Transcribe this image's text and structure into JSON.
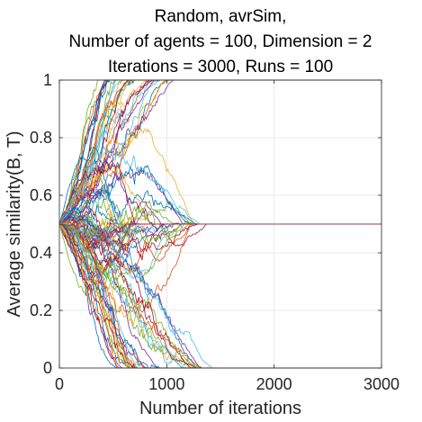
{
  "chart_data": {
    "type": "line",
    "title": [
      "Random, avrSim,",
      "Number of agents = 100, Dimension = 2",
      "Iterations = 3000, Runs = 100"
    ],
    "xlabel": "Number of iterations",
    "ylabel": "Average similarity(B, T)",
    "xlim": [
      0,
      3000
    ],
    "ylim": [
      0,
      1
    ],
    "xticks": [
      0,
      1000,
      2000,
      3000
    ],
    "xtick_labels": [
      "0",
      "1000",
      "2000",
      "3000"
    ],
    "yticks": [
      0,
      0.2,
      0.4,
      0.6,
      0.8,
      1
    ],
    "ytick_labels": [
      "0",
      "0.2",
      "0.4",
      "0.6",
      "0.8",
      "1"
    ],
    "grid": true,
    "legend": "none",
    "num_runs": 100,
    "start_value": 0.5,
    "final_value_groups": [
      {
        "final_value": 1,
        "approx_runs": 30,
        "converged_by_iteration": 1300
      },
      {
        "final_value": 0.5,
        "approx_runs": 40,
        "converged_by_iteration": 1400
      },
      {
        "final_value": 0,
        "approx_runs": 30,
        "converged_by_iteration": 1500
      }
    ],
    "series_colors": [
      "#0072BD",
      "#D95319",
      "#EDB120",
      "#7E2F8E",
      "#77AC30",
      "#4DBEEE",
      "#A2142F"
    ]
  }
}
